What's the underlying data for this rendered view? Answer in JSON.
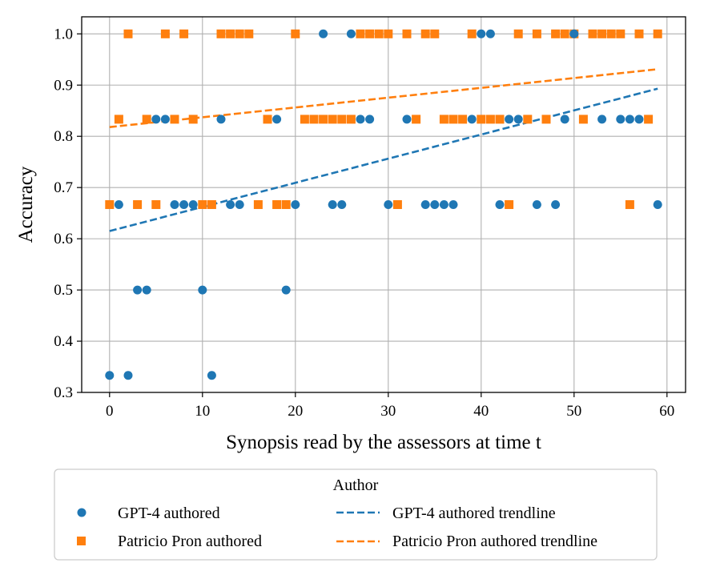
{
  "chart_data": {
    "type": "scatter",
    "xlabel": "Synopsis read by the assessors at time t",
    "ylabel": "Accuracy",
    "xlim": [
      -3,
      62
    ],
    "ylim": [
      0.3,
      1.0333
    ],
    "xticks": [
      0,
      10,
      20,
      30,
      40,
      50,
      60
    ],
    "xtick_labels": [
      "0",
      "10",
      "20",
      "30",
      "40",
      "50",
      "60"
    ],
    "yticks": [
      0.3,
      0.4,
      0.5,
      0.6,
      0.7,
      0.8,
      0.9,
      1.0
    ],
    "ytick_labels": [
      "0.3",
      "0.4",
      "0.5",
      "0.6",
      "0.7",
      "0.8",
      "0.9",
      "1.0"
    ],
    "grid": true,
    "series": [
      {
        "name": "GPT-4 authored",
        "marker": "circle",
        "color": "#1f77b4",
        "x": [
          0,
          1,
          2,
          3,
          4,
          5,
          6,
          7,
          8,
          9,
          10,
          11,
          12,
          13,
          14,
          18,
          19,
          20,
          23,
          24,
          25,
          26,
          27,
          28,
          30,
          32,
          34,
          35,
          36,
          37,
          39,
          40,
          41,
          42,
          43,
          44,
          46,
          48,
          49,
          50,
          53,
          55,
          56,
          57,
          59
        ],
        "y": [
          0.3333,
          0.6667,
          0.3333,
          0.5,
          0.5,
          0.8333,
          0.8333,
          0.6667,
          0.6667,
          0.6667,
          0.5,
          0.3333,
          0.8333,
          0.6667,
          0.6667,
          0.8333,
          0.5,
          0.6667,
          1.0,
          0.6667,
          0.6667,
          1.0,
          0.8333,
          0.8333,
          0.6667,
          0.8333,
          0.6667,
          0.6667,
          0.6667,
          0.6667,
          0.8333,
          1.0,
          1.0,
          0.6667,
          0.8333,
          0.8333,
          0.6667,
          0.6667,
          0.8333,
          1.0,
          0.8333,
          0.8333,
          0.8333,
          0.8333,
          0.6667
        ]
      },
      {
        "name": "Patricio Pron authored",
        "marker": "square",
        "color": "#ff7f0e",
        "x": [
          0,
          1,
          2,
          3,
          4,
          5,
          6,
          7,
          8,
          9,
          10,
          11,
          12,
          13,
          14,
          15,
          16,
          17,
          18,
          19,
          20,
          21,
          22,
          23,
          24,
          25,
          26,
          27,
          28,
          29,
          30,
          31,
          32,
          33,
          34,
          35,
          36,
          37,
          38,
          39,
          40,
          41,
          42,
          43,
          44,
          45,
          46,
          47,
          48,
          49,
          50,
          51,
          52,
          53,
          54,
          55,
          56,
          57,
          58,
          59
        ],
        "y": [
          0.6667,
          0.8333,
          1.0,
          0.6667,
          0.8333,
          0.6667,
          1.0,
          0.8333,
          1.0,
          0.8333,
          0.6667,
          0.6667,
          1.0,
          1.0,
          1.0,
          1.0,
          0.6667,
          0.8333,
          0.6667,
          0.6667,
          1.0,
          0.8333,
          0.8333,
          0.8333,
          0.8333,
          0.8333,
          0.8333,
          1.0,
          1.0,
          1.0,
          1.0,
          0.6667,
          1.0,
          0.8333,
          1.0,
          1.0,
          0.8333,
          0.8333,
          0.8333,
          1.0,
          0.8333,
          0.8333,
          0.8333,
          0.6667,
          1.0,
          0.8333,
          1.0,
          0.8333,
          1.0,
          1.0,
          1.0,
          0.8333,
          1.0,
          1.0,
          1.0,
          1.0,
          0.6667,
          1.0,
          0.8333,
          1.0
        ]
      }
    ],
    "trendlines": [
      {
        "name": "GPT-4 authored trendline",
        "color": "#1f77b4",
        "style": "dashed",
        "x": [
          0,
          59
        ],
        "y": [
          0.615,
          0.893
        ]
      },
      {
        "name": "Patricio Pron authored trendline",
        "color": "#ff7f0e",
        "style": "dashed",
        "x": [
          0,
          59
        ],
        "y": [
          0.818,
          0.931
        ]
      }
    ],
    "legend": {
      "title": "Author",
      "placement": "below-center",
      "entries": [
        "GPT-4 authored",
        "GPT-4 authored trendline",
        "Patricio Pron authored",
        "Patricio Pron authored trendline"
      ]
    }
  }
}
